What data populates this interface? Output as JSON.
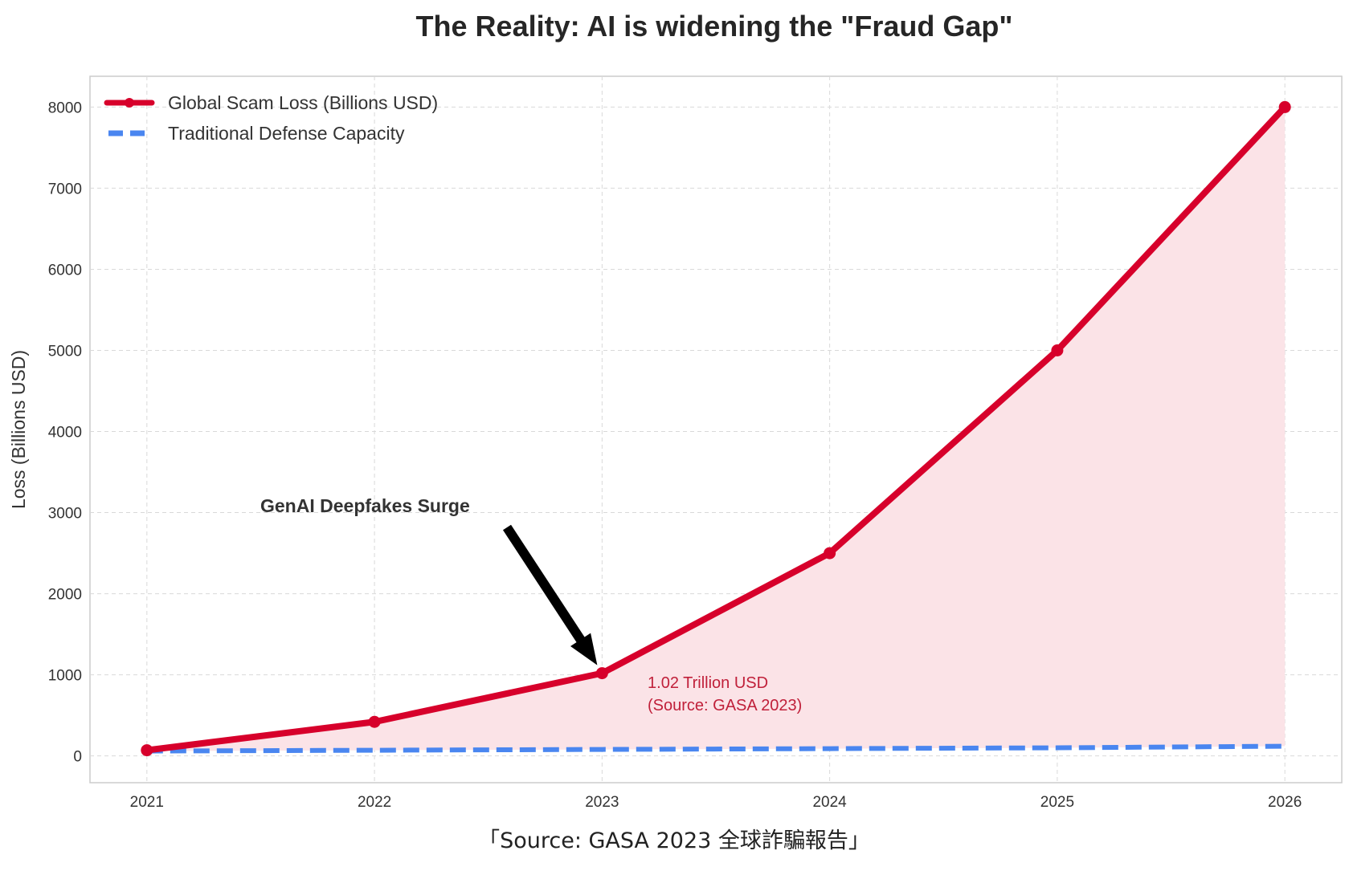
{
  "chart_data": {
    "type": "line",
    "title": "The Reality: AI is widening the \"Fraud Gap\"",
    "xlabel": "",
    "ylabel": "Loss (Billions USD)",
    "x": [
      2021,
      2022,
      2023,
      2024,
      2025,
      2026
    ],
    "x_tick_labels": [
      "2021",
      "2022",
      "2023",
      "2024",
      "2025",
      "2026"
    ],
    "y_ticks": [
      0,
      1000,
      2000,
      3000,
      4000,
      5000,
      6000,
      7000,
      8000
    ],
    "y_tick_labels": [
      "0",
      "1000",
      "2000",
      "3000",
      "4000",
      "5000",
      "6000",
      "7000",
      "8000"
    ],
    "xlim": [
      2020.75,
      2026.25
    ],
    "ylim": [
      -330,
      8380
    ],
    "grid": true,
    "legend_position": "top-left",
    "series": [
      {
        "name": "Global Scam Loss (Billions USD)",
        "values": [
          70,
          420,
          1020,
          2500,
          5000,
          8000
        ],
        "color": "#d7002b",
        "style": "solid-markers",
        "fill_area": true,
        "fill_color": "#fbe3e7"
      },
      {
        "name": "Traditional Defense Capacity",
        "values": [
          60,
          70,
          80,
          90,
          100,
          120
        ],
        "color": "#4a86f0",
        "style": "dashed"
      }
    ],
    "annotations": [
      {
        "text": "GenAI Deepfakes Surge",
        "target_x": 2023,
        "target_y": 1020,
        "style": "bold-arrow"
      },
      {
        "lines": [
          "1.02 Trillion USD",
          "(Source: GASA 2023)"
        ],
        "anchor_x": 2023.2,
        "anchor_y": 820,
        "color": "#c0203a"
      }
    ]
  },
  "caption": "「Source: GASA 2023 全球詐騙報告」"
}
